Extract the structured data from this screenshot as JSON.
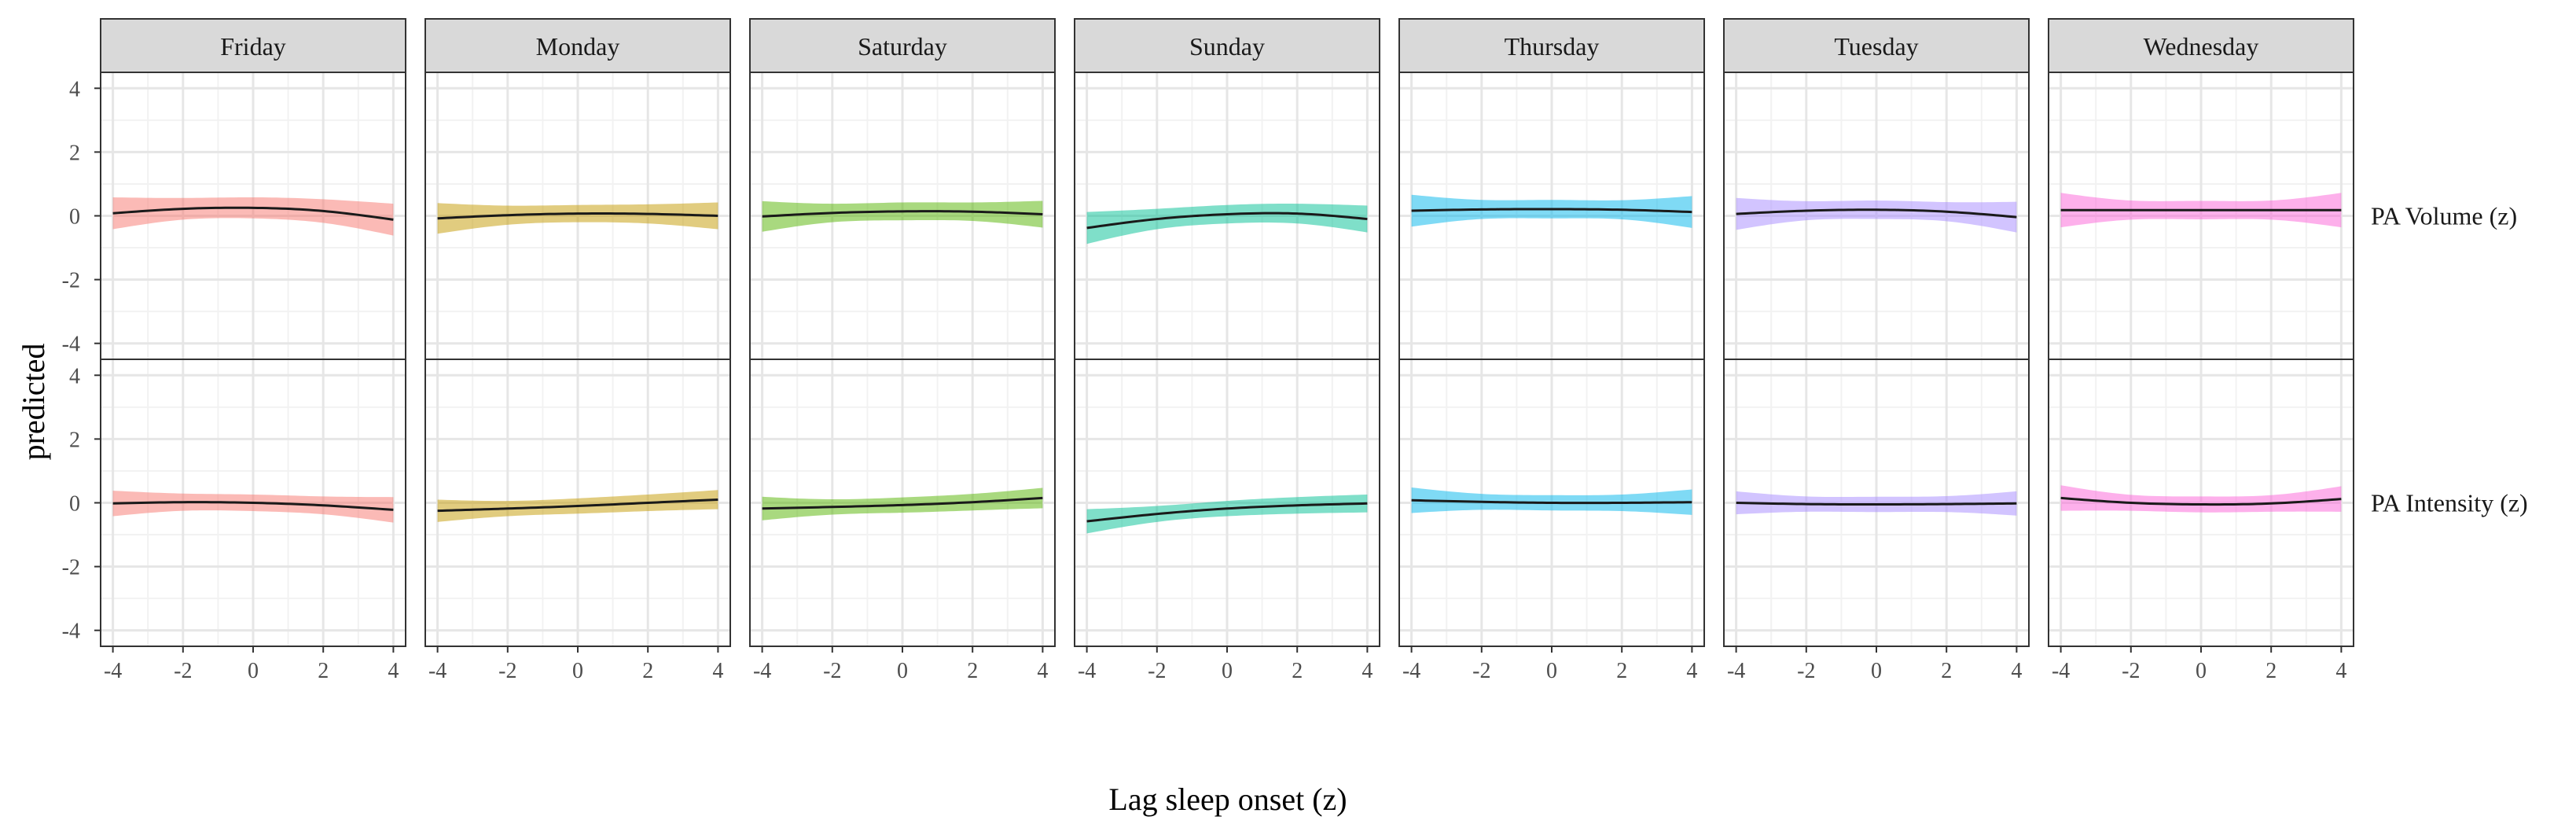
{
  "chart_data": {
    "type": "line",
    "xlabel": "Lag sleep onset (z)",
    "ylabel": "predicted",
    "xlim": [
      -4.35,
      4.35
    ],
    "ylim": [
      -4.5,
      4.5
    ],
    "xticks": [
      -4,
      -2,
      0,
      2,
      4
    ],
    "xtick_labels": [
      "-4",
      "-2",
      "0",
      "2",
      "4"
    ],
    "yticks": [
      -4,
      -2,
      0,
      2,
      4
    ],
    "ytick_labels": [
      "-4",
      "-2",
      "0",
      "2",
      "4"
    ],
    "grid": true,
    "days": [
      "Friday",
      "Monday",
      "Saturday",
      "Sunday",
      "Thursday",
      "Tuesday",
      "Wednesday"
    ],
    "rows": [
      "PA Volume (z)",
      "PA Intensity (z)"
    ],
    "colors": [
      "#F8766D",
      "#C49A00",
      "#53B400",
      "#00C094",
      "#00B6EB",
      "#A58AFF",
      "#FB61D7"
    ],
    "x": [
      -4,
      -2,
      0,
      2,
      4
    ],
    "panels": [
      [
        {
          "fit": [
            0.08,
            0.22,
            0.25,
            0.15,
            -0.12
          ],
          "lower": [
            -0.42,
            -0.12,
            -0.08,
            -0.22,
            -0.62
          ],
          "upper": [
            0.58,
            0.56,
            0.58,
            0.52,
            0.38
          ]
        },
        {
          "fit": [
            -0.08,
            0.02,
            0.07,
            0.06,
            0.0
          ],
          "lower": [
            -0.56,
            -0.28,
            -0.2,
            -0.24,
            -0.42
          ],
          "upper": [
            0.4,
            0.32,
            0.34,
            0.36,
            0.42
          ]
        },
        {
          "fit": [
            -0.02,
            0.09,
            0.14,
            0.13,
            0.05
          ],
          "lower": [
            -0.5,
            -0.2,
            -0.14,
            -0.16,
            -0.37
          ],
          "upper": [
            0.46,
            0.38,
            0.42,
            0.42,
            0.47
          ]
        },
        {
          "fit": [
            -0.38,
            -0.1,
            0.05,
            0.07,
            -0.1
          ],
          "lower": [
            -0.88,
            -0.42,
            -0.24,
            -0.24,
            -0.52
          ],
          "upper": [
            0.12,
            0.22,
            0.34,
            0.38,
            0.32
          ]
        },
        {
          "fit": [
            0.16,
            0.2,
            0.21,
            0.19,
            0.12
          ],
          "lower": [
            -0.34,
            -0.1,
            -0.08,
            -0.11,
            -0.38
          ],
          "upper": [
            0.66,
            0.5,
            0.5,
            0.49,
            0.62
          ]
        },
        {
          "fit": [
            0.06,
            0.16,
            0.19,
            0.13,
            -0.04
          ],
          "lower": [
            -0.44,
            -0.14,
            -0.1,
            -0.17,
            -0.52
          ],
          "upper": [
            0.56,
            0.46,
            0.48,
            0.43,
            0.44
          ]
        },
        {
          "fit": [
            0.18,
            0.18,
            0.18,
            0.18,
            0.18
          ],
          "lower": [
            -0.36,
            -0.12,
            -0.11,
            -0.12,
            -0.36
          ],
          "upper": [
            0.72,
            0.48,
            0.47,
            0.48,
            0.72
          ]
        }
      ],
      [
        {
          "fit": [
            -0.02,
            0.02,
            0.0,
            -0.08,
            -0.22
          ],
          "lower": [
            -0.42,
            -0.25,
            -0.26,
            -0.36,
            -0.62
          ],
          "upper": [
            0.38,
            0.29,
            0.26,
            0.2,
            0.18
          ]
        },
        {
          "fit": [
            -0.25,
            -0.18,
            -0.1,
            0.0,
            0.1
          ],
          "lower": [
            -0.6,
            -0.42,
            -0.34,
            -0.26,
            -0.2
          ],
          "upper": [
            0.1,
            0.06,
            0.14,
            0.26,
            0.4
          ]
        },
        {
          "fit": [
            -0.18,
            -0.13,
            -0.07,
            0.02,
            0.15
          ],
          "lower": [
            -0.55,
            -0.37,
            -0.31,
            -0.24,
            -0.17
          ],
          "upper": [
            0.19,
            0.11,
            0.17,
            0.28,
            0.47
          ]
        },
        {
          "fit": [
            -0.58,
            -0.35,
            -0.18,
            -0.08,
            -0.02
          ],
          "lower": [
            -0.96,
            -0.6,
            -0.42,
            -0.34,
            -0.3
          ],
          "upper": [
            -0.2,
            -0.1,
            0.06,
            0.18,
            0.26
          ]
        },
        {
          "fit": [
            0.08,
            0.03,
            0.0,
            0.0,
            0.02
          ],
          "lower": [
            -0.32,
            -0.22,
            -0.24,
            -0.26,
            -0.38
          ],
          "upper": [
            0.48,
            0.28,
            0.24,
            0.26,
            0.42
          ]
        },
        {
          "fit": [
            0.0,
            -0.04,
            -0.05,
            -0.04,
            -0.02
          ],
          "lower": [
            -0.36,
            -0.28,
            -0.29,
            -0.29,
            -0.4
          ],
          "upper": [
            0.36,
            0.2,
            0.19,
            0.21,
            0.36
          ]
        },
        {
          "fit": [
            0.15,
            0.0,
            -0.05,
            -0.02,
            0.12
          ],
          "lower": [
            -0.25,
            -0.25,
            -0.3,
            -0.28,
            -0.28
          ],
          "upper": [
            0.55,
            0.25,
            0.2,
            0.24,
            0.52
          ]
        }
      ]
    ]
  }
}
